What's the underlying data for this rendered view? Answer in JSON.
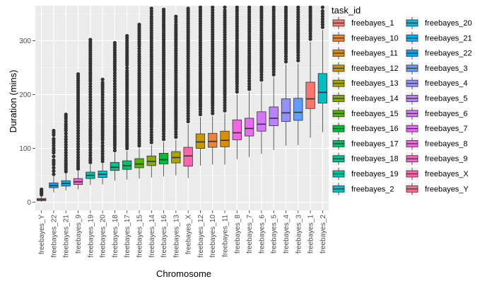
{
  "chart_data": {
    "type": "boxplot",
    "xlabel": "Chromosome",
    "ylabel": "Duration (mins)",
    "ylim": [
      -15,
      365
    ],
    "yticks": [
      0,
      100,
      200,
      300
    ],
    "grid": true,
    "legend_position": "right",
    "legend_title": "task_id",
    "legend_entries": [
      "freebayes_1",
      "freebayes_10",
      "freebayes_11",
      "freebayes_12",
      "freebayes_13",
      "freebayes_14",
      "freebayes_15",
      "freebayes_16",
      "freebayes_17",
      "freebayes_18",
      "freebayes_19",
      "freebayes_2",
      "freebayes_20",
      "freebayes_21",
      "freebayes_22",
      "freebayes_3",
      "freebayes_4",
      "freebayes_5",
      "freebayes_6",
      "freebayes_7",
      "freebayes_8",
      "freebayes_9",
      "freebayes_X",
      "freebayes_Y"
    ],
    "colors": {
      "freebayes_1": "#F8766D",
      "freebayes_10": "#EB8335",
      "freebayes_11": "#DA8F00",
      "freebayes_12": "#C49A00",
      "freebayes_13": "#A9A400",
      "freebayes_14": "#86AC00",
      "freebayes_15": "#53B400",
      "freebayes_16": "#00BA38",
      "freebayes_17": "#00BE6C",
      "freebayes_18": "#00C08E",
      "freebayes_19": "#00C1AA",
      "freebayes_2": "#00BFC4",
      "freebayes_20": "#00BCDC",
      "freebayes_21": "#00B4F0",
      "freebayes_22": "#00A9FF",
      "freebayes_3": "#619CFF",
      "freebayes_4": "#9590FF",
      "freebayes_5": "#B983FF",
      "freebayes_6": "#D575FE",
      "freebayes_7": "#E76BF3",
      "freebayes_8": "#F564E3",
      "freebayes_9": "#FF61CC",
      "freebayes_X": "#FF65AE",
      "freebayes_Y": "#FD6D8E"
    },
    "categories": [
      "freebayes_Y",
      "freebayes_22",
      "freebayes_21",
      "freebayes_9",
      "freebayes_19",
      "freebayes_20",
      "freebayes_18",
      "freebayes_17",
      "freebayes_15",
      "freebayes_14",
      "freebayes_16",
      "freebayes_13",
      "freebayes_X",
      "freebayes_12",
      "freebayes_10",
      "freebayes_11",
      "freebayes_8",
      "freebayes_7",
      "freebayes_6",
      "freebayes_5",
      "freebayes_4",
      "freebayes_3",
      "freebayes_1",
      "freebayes_2"
    ],
    "boxes": [
      {
        "q1": 3,
        "median": 5,
        "q3": 7,
        "lower": 1,
        "upper": 12,
        "outliers": [
          14,
          16,
          18,
          20,
          22,
          24
        ]
      },
      {
        "q1": 27,
        "median": 31,
        "q3": 36,
        "lower": 18,
        "upper": 48,
        "outliers": [
          52,
          58,
          64,
          70,
          78,
          85,
          92,
          100,
          110,
          118,
          125,
          133
        ]
      },
      {
        "q1": 30,
        "median": 35,
        "q3": 40,
        "lower": 22,
        "upper": 53,
        "outliers": [
          57,
          65,
          73,
          82,
          92,
          102,
          112,
          122,
          133,
          145,
          155,
          163
        ]
      },
      {
        "q1": 33,
        "median": 38,
        "q3": 44,
        "lower": 24,
        "upper": 58,
        "outliers": [
          62,
          70,
          78,
          88,
          98,
          108,
          118,
          128,
          138,
          148,
          156,
          238
        ]
      },
      {
        "q1": 44,
        "median": 50,
        "q3": 56,
        "lower": 32,
        "upper": 70,
        "outliers": [
          74,
          82,
          92,
          102,
          112,
          124,
          136,
          150,
          165,
          180,
          195,
          210,
          225,
          290,
          302
        ]
      },
      {
        "q1": 46,
        "median": 52,
        "q3": 58,
        "lower": 33,
        "upper": 72,
        "outliers": [
          76,
          85,
          95,
          105,
          116,
          128,
          140,
          152,
          165,
          180,
          195,
          210,
          222,
          228
        ]
      },
      {
        "q1": 59,
        "median": 65,
        "q3": 74,
        "lower": 40,
        "upper": 92,
        "outliers": [
          96,
          106,
          118,
          130,
          142,
          156,
          170,
          185,
          200,
          215,
          230,
          245,
          265,
          278,
          296
        ]
      },
      {
        "q1": 61,
        "median": 68,
        "q3": 77,
        "lower": 42,
        "upper": 95,
        "outliers": [
          100,
          112,
          124,
          136,
          150,
          165,
          180,
          196,
          212,
          228,
          244,
          255,
          275,
          309
        ]
      },
      {
        "q1": 64,
        "median": 71,
        "q3": 81,
        "lower": 44,
        "upper": 100,
        "outliers": [
          105,
          118,
          132,
          146,
          160,
          176,
          192,
          208,
          224,
          240,
          258,
          275,
          290,
          306,
          322,
          330
        ]
      },
      {
        "q1": 68,
        "median": 76,
        "q3": 86,
        "lower": 46,
        "upper": 106,
        "outliers": [
          111,
          125,
          140,
          156,
          172,
          188,
          204,
          220,
          238,
          256,
          274,
          292,
          310,
          328,
          345,
          360
        ]
      },
      {
        "q1": 71,
        "median": 79,
        "q3": 91,
        "lower": 48,
        "upper": 112,
        "outliers": [
          117,
          132,
          148,
          164,
          180,
          196,
          214,
          232,
          250,
          270,
          290,
          310,
          330,
          350,
          358
        ]
      },
      {
        "q1": 73,
        "median": 83,
        "q3": 94,
        "lower": 50,
        "upper": 116,
        "outliers": [
          121,
          136,
          152,
          168,
          184,
          200,
          218,
          236,
          254,
          272,
          290,
          310,
          330,
          345
        ]
      },
      {
        "q1": 67,
        "median": 86,
        "q3": 102,
        "lower": 45,
        "upper": 145,
        "outliers": [
          150,
          165,
          180,
          196,
          212,
          228,
          244,
          262,
          280,
          300,
          320,
          340,
          360
        ]
      },
      {
        "q1": 100,
        "median": 112,
        "q3": 127,
        "lower": 68,
        "upper": 158,
        "outliers": [
          163,
          178,
          194,
          210,
          226,
          242,
          260,
          278,
          296,
          314,
          332,
          350,
          362
        ]
      },
      {
        "q1": 102,
        "median": 113,
        "q3": 128,
        "lower": 70,
        "upper": 160,
        "outliers": [
          165,
          180,
          196,
          212,
          228,
          244,
          262,
          280,
          298,
          316,
          334,
          352,
          362
        ]
      },
      {
        "q1": 103,
        "median": 115,
        "q3": 132,
        "lower": 70,
        "upper": 165,
        "outliers": [
          170,
          185,
          200,
          216,
          232,
          248,
          266,
          284,
          302,
          320,
          338,
          356,
          362
        ]
      },
      {
        "q1": 116,
        "median": 129,
        "q3": 153,
        "lower": 80,
        "upper": 200,
        "outliers": [
          205,
          220,
          236,
          252,
          268,
          284,
          300,
          318,
          336,
          354,
          362
        ]
      },
      {
        "q1": 123,
        "median": 137,
        "q3": 156,
        "lower": 84,
        "upper": 205,
        "outliers": [
          210,
          225,
          240,
          256,
          272,
          290,
          308,
          326,
          344,
          362
        ]
      },
      {
        "q1": 132,
        "median": 145,
        "q3": 168,
        "lower": 90,
        "upper": 222,
        "outliers": [
          227,
          242,
          258,
          274,
          290,
          306,
          324,
          342,
          362
        ]
      },
      {
        "q1": 142,
        "median": 156,
        "q3": 177,
        "lower": 97,
        "upper": 232,
        "outliers": [
          237,
          252,
          268,
          284,
          300,
          318,
          336,
          354,
          362
        ]
      },
      {
        "q1": 150,
        "median": 166,
        "q3": 192,
        "lower": 105,
        "upper": 256,
        "outliers": [
          261,
          276,
          292,
          308,
          324,
          342,
          362
        ]
      },
      {
        "q1": 152,
        "median": 167,
        "q3": 193,
        "lower": 106,
        "upper": 258,
        "outliers": [
          263,
          278,
          294,
          310,
          326,
          344,
          362
        ]
      },
      {
        "q1": 174,
        "median": 192,
        "q3": 223,
        "lower": 120,
        "upper": 298,
        "outliers": [
          303,
          318,
          334,
          350,
          362
        ]
      },
      {
        "q1": 184,
        "median": 204,
        "q3": 239,
        "lower": 130,
        "upper": 320,
        "outliers": [
          325,
          340,
          355,
          362
        ]
      }
    ]
  }
}
